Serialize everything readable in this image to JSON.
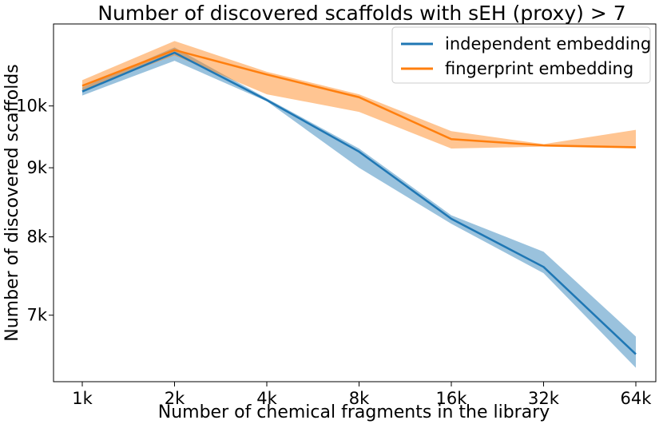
{
  "chart_data": {
    "type": "line",
    "title": "Number of discovered scaffolds with sEH (proxy) > 7",
    "xlabel": "Number of chemical fragments in the library",
    "ylabel": "Number of discovered scaffolds",
    "categories": [
      "1k",
      "2k",
      "4k",
      "8k",
      "16k",
      "32k",
      "64k"
    ],
    "y_scale": "log",
    "ylim": [
      6250,
      11500
    ],
    "yticks": [
      {
        "value": 7000,
        "label": "7k"
      },
      {
        "value": 8000,
        "label": "8k"
      },
      {
        "value": 9000,
        "label": "9k"
      },
      {
        "value": 10000,
        "label": "10k"
      }
    ],
    "grid": false,
    "legend_position": "top-right",
    "series": [
      {
        "name": "independent embedding",
        "color": "#1f77b4",
        "values": [
          10250,
          10950,
          10100,
          9250,
          8250,
          7600,
          6550
        ],
        "lower": [
          10180,
          10800,
          10080,
          9000,
          8180,
          7520,
          6400
        ],
        "upper": [
          10320,
          11050,
          10130,
          9300,
          8300,
          7800,
          6750
        ]
      },
      {
        "name": "fingerprint embedding",
        "color": "#ff7f0e",
        "values": [
          10350,
          11000,
          10550,
          10150,
          9450,
          9350,
          9320
        ],
        "lower": [
          10270,
          10900,
          10200,
          9900,
          9300,
          9330,
          9300
        ],
        "upper": [
          10450,
          11170,
          10600,
          10200,
          9580,
          9370,
          9600
        ]
      }
    ]
  }
}
